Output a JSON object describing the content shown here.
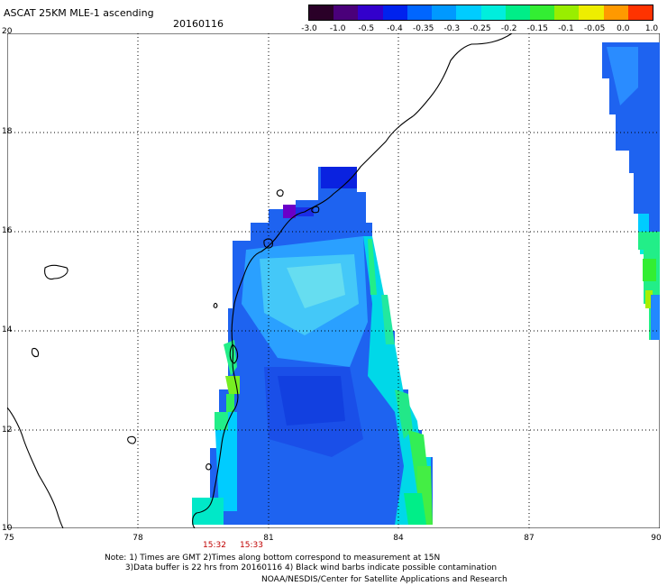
{
  "header": {
    "title": "ASCAT 25KM MLE-1 ascending",
    "date": "20160116"
  },
  "colorbar": {
    "labels": [
      "-3.0",
      "-1.0",
      "-0.5",
      "-0.4",
      "-0.35",
      "-0.3",
      "-0.25",
      "-0.2",
      "-0.15",
      "-0.1",
      "-0.05",
      "0.0",
      "1.0"
    ],
    "colors": [
      "#2a0028",
      "#4a007a",
      "#3300cc",
      "#0022ee",
      "#0066ff",
      "#0099ff",
      "#00ccff",
      "#00eedd",
      "#00ee88",
      "#33ee33",
      "#99ee00",
      "#eeee00",
      "#ff9900",
      "#ff3300"
    ]
  },
  "axes": {
    "lat_labels": [
      "20",
      "18",
      "16",
      "14",
      "12",
      "10"
    ],
    "lon_labels": [
      "75",
      "78",
      "81",
      "84",
      "87",
      "90"
    ]
  },
  "pass_times": [
    "15:32",
    "15:33"
  ],
  "notes": {
    "line1": "Note: 1) Times are GMT 2)Times along bottom correspond to measurement at 15N",
    "line2": "3)Data buffer is 22 hrs from 20160116 4) Black wind barbs indicate possible contamination",
    "credit": "NOAA/NESDIS/Center for Satellite Applications and Research"
  }
}
